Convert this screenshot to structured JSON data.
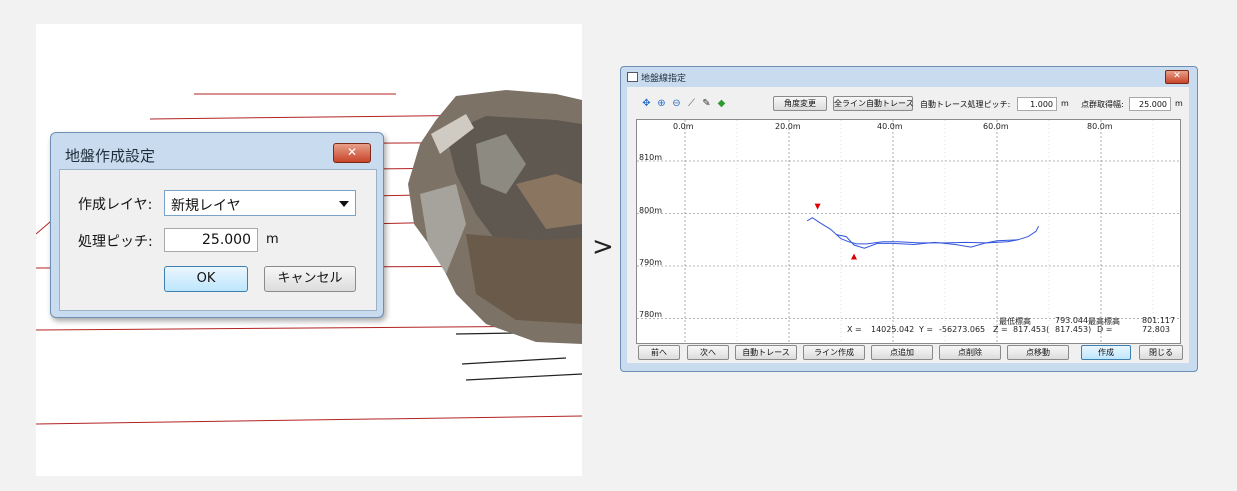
{
  "left_dialog": {
    "title": "地盤作成設定",
    "close_glyph": "✕",
    "layer_label": "作成レイヤ:",
    "layer_value": "新規レイヤ",
    "pitch_label": "処理ピッチ:",
    "pitch_value": "25.000",
    "pitch_unit": "m",
    "ok_label": "OK",
    "cancel_label": "キャンセル"
  },
  "separator": ">",
  "window": {
    "title": "地盤線指定",
    "close_glyph": "✕",
    "toolbar": {
      "angle_button": "角度変更",
      "auto_all_button": "全ライン自動トレース",
      "trace_pitch_label": "自動トレース処理ピッチ:",
      "trace_pitch_value": "1.000",
      "trace_pitch_unit": "m",
      "point_width_label": "点群取得幅:",
      "point_width_value": "25.000",
      "point_width_unit": "m"
    },
    "plot": {
      "x_ticks": [
        "0.0m",
        "20.0m",
        "40.0m",
        "60.0m",
        "80.0m"
      ],
      "y_ticks": [
        "810m",
        "800m",
        "790m",
        "780m"
      ],
      "min_label": "最低標高",
      "min_value": "793.044",
      "max_label": "最高標高",
      "max_value": "801.117",
      "x_readout_label": "X =",
      "x_readout_value": "14025.042",
      "y_readout_label": "Y =",
      "y_readout_value": "-56273.065",
      "z_readout_label": "Z =",
      "z_readout_value": "817.453(",
      "z_readout_value2": "817.453)",
      "d_readout_label": "D =",
      "d_readout_value": "72.803"
    },
    "buttons": {
      "prev": "前へ",
      "next": "次へ",
      "auto_trace": "自動トレース",
      "line_create": "ライン作成",
      "add_point": "点追加",
      "delete_point": "点削除",
      "move_point": "点移動",
      "create": "作成",
      "close": "閉じる"
    },
    "profile_data": {
      "x_range_m": [
        0,
        90
      ],
      "y_range_m": [
        776,
        814
      ],
      "series": [
        {
          "color": "#3355dd",
          "points": [
            [
              23.5,
              798.6
            ],
            [
              24.5,
              799.2
            ],
            [
              26,
              798.2
            ],
            [
              28,
              797
            ],
            [
              30,
              795.2
            ],
            [
              31.5,
              794.6
            ],
            [
              33,
              794.2
            ],
            [
              35,
              794.2
            ],
            [
              38,
              794.6
            ],
            [
              41,
              794.6
            ],
            [
              45,
              794.4
            ],
            [
              50,
              794.4
            ],
            [
              54,
              794.5
            ],
            [
              58,
              794.4
            ],
            [
              62,
              794.6
            ],
            [
              64,
              795
            ],
            [
              66,
              795.6
            ],
            [
              67.5,
              796.6
            ],
            [
              68,
              797.6
            ]
          ]
        },
        {
          "color": "#3355dd",
          "points": [
            [
              29,
              796
            ],
            [
              31,
              795.6
            ],
            [
              32.5,
              794
            ],
            [
              34.5,
              793.4
            ],
            [
              37,
              794.3
            ],
            [
              40,
              794.3
            ],
            [
              44,
              794.1
            ],
            [
              48,
              794.5
            ],
            [
              52,
              794.1
            ],
            [
              55,
              793.6
            ],
            [
              57.5,
              794.3
            ],
            [
              60,
              794.8
            ],
            [
              64,
              795
            ]
          ]
        }
      ],
      "markers": [
        {
          "x": 25.5,
          "y": 801.3,
          "color": "#dd0000",
          "dir": "down"
        },
        {
          "x": 32.5,
          "y": 791.8,
          "color": "#dd0000",
          "dir": "up"
        }
      ]
    },
    "icons": [
      "fit-view-icon",
      "zoom-in-icon",
      "zoom-out-icon",
      "measure-icon",
      "edit-icon",
      "layer-icon"
    ]
  }
}
